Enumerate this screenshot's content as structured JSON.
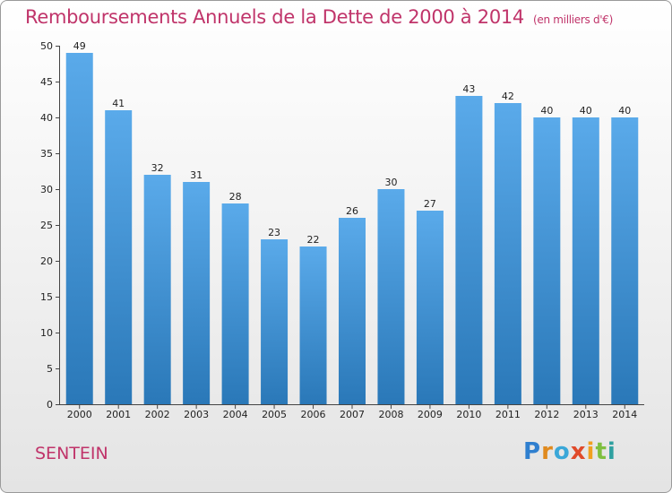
{
  "chart_data": {
    "type": "bar",
    "title": "Remboursements Annuels de la Dette de 2000 à 2014",
    "unit_note": "(en milliers d'€)",
    "categories": [
      "2000",
      "2001",
      "2002",
      "2003",
      "2004",
      "2005",
      "2006",
      "2007",
      "2008",
      "2009",
      "2010",
      "2011",
      "2012",
      "2013",
      "2014"
    ],
    "values": [
      49,
      41,
      32,
      31,
      28,
      23,
      22,
      26,
      30,
      27,
      43,
      42,
      40,
      40,
      40
    ],
    "ylim": [
      0,
      50
    ],
    "yticks": [
      0,
      5,
      10,
      15,
      20,
      25,
      30,
      35,
      40,
      45,
      50
    ],
    "xlabel": "",
    "ylabel": "",
    "grid": false,
    "colors": {
      "bar_light": "#5aaaea",
      "bar_dark": "#2a78b8",
      "title": "#c0346a"
    }
  },
  "footer": {
    "commune": "SENTEIN",
    "logo_letters": [
      {
        "ch": "P",
        "color": "#2f7fcf"
      },
      {
        "ch": "r",
        "color": "#e08a1e"
      },
      {
        "ch": "o",
        "color": "#3aa7d8"
      },
      {
        "ch": "x",
        "color": "#e04a2a"
      },
      {
        "ch": "i",
        "color": "#f0a020"
      },
      {
        "ch": "t",
        "color": "#7fbf3f"
      },
      {
        "ch": "i",
        "color": "#2fa0a0"
      }
    ]
  }
}
